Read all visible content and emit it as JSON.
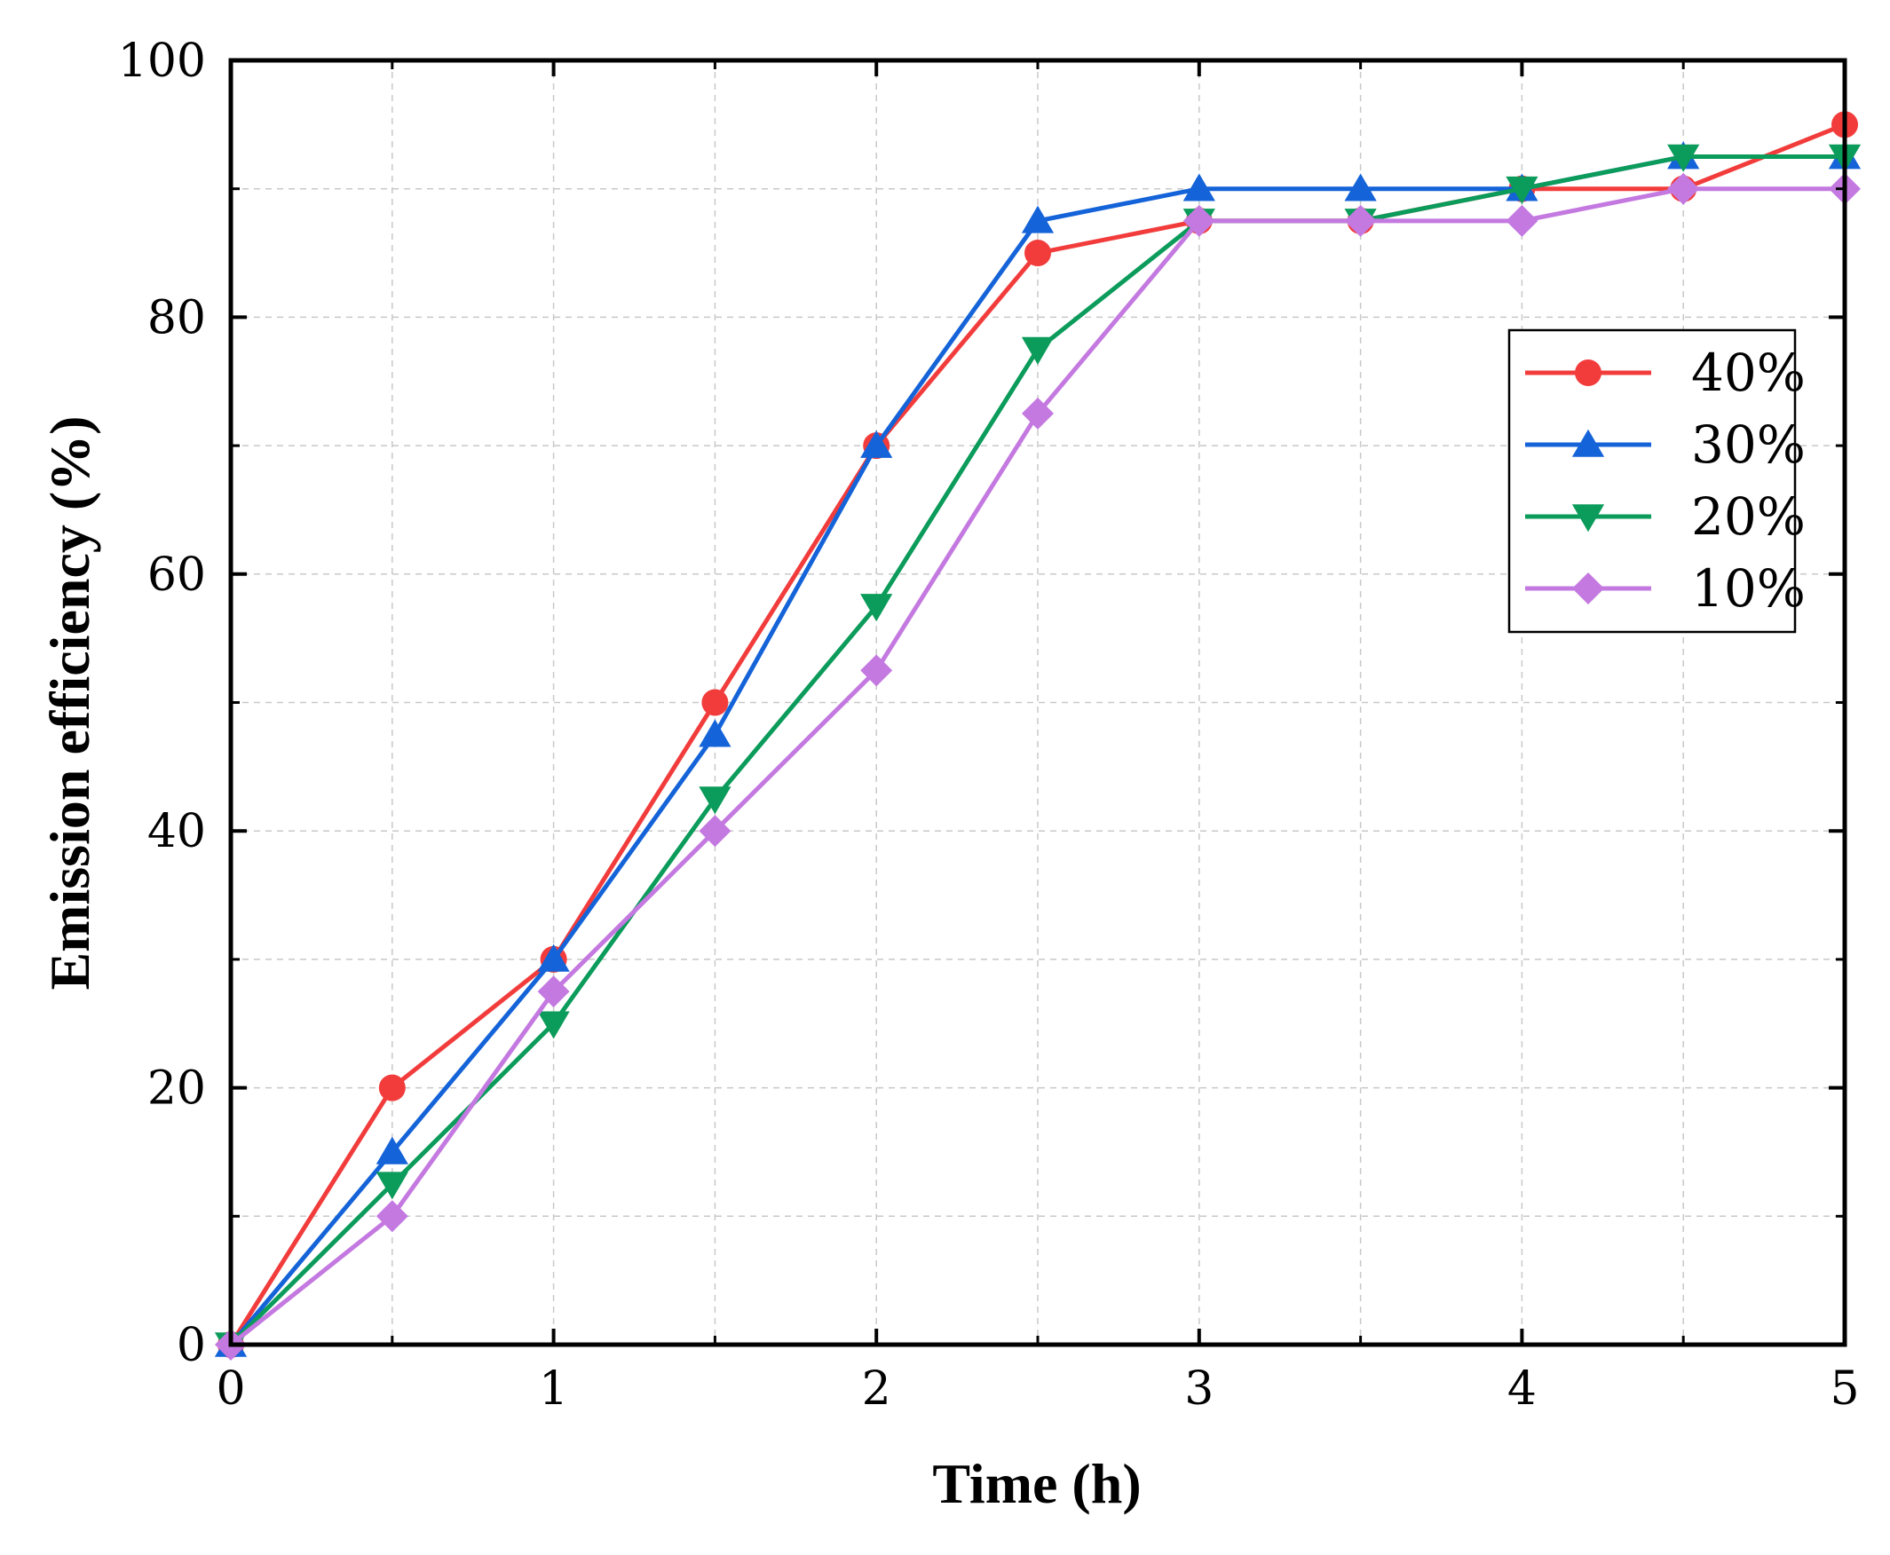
{
  "chart_data": {
    "type": "line",
    "title": "",
    "xlabel": "Time (h)",
    "ylabel": "Emission efficiency (%)",
    "xlim": [
      0,
      5
    ],
    "ylim": [
      0,
      100
    ],
    "xticks": [
      "0",
      "1",
      "2",
      "3",
      "4",
      "5"
    ],
    "yticks": [
      "0",
      "20",
      "40",
      "60",
      "80",
      "100"
    ],
    "grid": true,
    "legend_position": "right",
    "x": [
      0,
      0.5,
      1,
      1.5,
      2,
      2.5,
      3,
      3.5,
      4,
      4.5,
      5
    ],
    "series": [
      {
        "name": "40%",
        "color": "#f23c3c",
        "marker": "circle",
        "values": [
          0,
          20,
          30,
          50,
          70,
          85,
          87.5,
          87.5,
          90,
          90,
          95
        ]
      },
      {
        "name": "30%",
        "color": "#1463d8",
        "marker": "triangle-up",
        "values": [
          0,
          15,
          30,
          47.5,
          70,
          87.5,
          90,
          90,
          90,
          92.5,
          92.5
        ]
      },
      {
        "name": "20%",
        "color": "#0b9b5a",
        "marker": "triangle-down",
        "values": [
          0,
          12.5,
          25,
          42.5,
          57.5,
          77.5,
          87.5,
          87.5,
          90,
          92.5,
          92.5
        ]
      },
      {
        "name": "10%",
        "color": "#c479e0",
        "marker": "diamond",
        "values": [
          0,
          10,
          27.5,
          40,
          52.5,
          72.5,
          87.5,
          87.5,
          87.5,
          90,
          90
        ]
      }
    ]
  }
}
